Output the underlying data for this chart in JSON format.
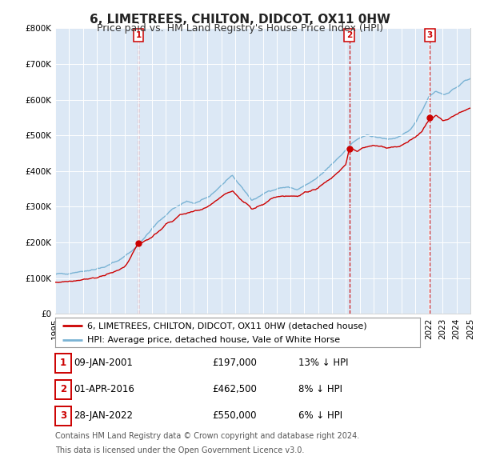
{
  "title": "6, LIMETREES, CHILTON, DIDCOT, OX11 0HW",
  "subtitle": "Price paid vs. HM Land Registry's House Price Index (HPI)",
  "bg_color": "#ffffff",
  "plot_bg_color": "#dce8f5",
  "grid_color": "#ffffff",
  "red_line_color": "#cc0000",
  "blue_line_color": "#7ab3d4",
  "sale_marker_color": "#cc0000",
  "vline_color": "#cc0000",
  "ylim": [
    0,
    800000
  ],
  "yticks": [
    0,
    100000,
    200000,
    300000,
    400000,
    500000,
    600000,
    700000,
    800000
  ],
  "ytick_labels": [
    "£0",
    "£100K",
    "£200K",
    "£300K",
    "£400K",
    "£500K",
    "£600K",
    "£700K",
    "£800K"
  ],
  "xmin_year": 1995,
  "xmax_year": 2025,
  "xtick_years": [
    1995,
    1996,
    1997,
    1998,
    1999,
    2000,
    2001,
    2002,
    2003,
    2004,
    2005,
    2006,
    2007,
    2008,
    2009,
    2010,
    2011,
    2012,
    2013,
    2014,
    2015,
    2016,
    2017,
    2018,
    2019,
    2020,
    2021,
    2022,
    2023,
    2024,
    2025
  ],
  "sale_year_nums": [
    2001.027,
    2016.249,
    2022.075
  ],
  "sale_prices": [
    197000,
    462500,
    550000
  ],
  "sale_labels": [
    "1",
    "2",
    "3"
  ],
  "legend_entries": [
    "6, LIMETREES, CHILTON, DIDCOT, OX11 0HW (detached house)",
    "HPI: Average price, detached house, Vale of White Horse"
  ],
  "table_rows": [
    {
      "num": "1",
      "date": "09-JAN-2001",
      "price": "£197,000",
      "hpi": "13% ↓ HPI"
    },
    {
      "num": "2",
      "date": "01-APR-2016",
      "price": "£462,500",
      "hpi": "8% ↓ HPI"
    },
    {
      "num": "3",
      "date": "28-JAN-2022",
      "price": "£550,000",
      "hpi": "6% ↓ HPI"
    }
  ],
  "footnote1": "Contains HM Land Registry data © Crown copyright and database right 2024.",
  "footnote2": "This data is licensed under the Open Government Licence v3.0.",
  "title_fontsize": 11,
  "subtitle_fontsize": 9,
  "tick_fontsize": 7.5,
  "legend_fontsize": 8,
  "table_fontsize": 8.5,
  "footnote_fontsize": 7
}
